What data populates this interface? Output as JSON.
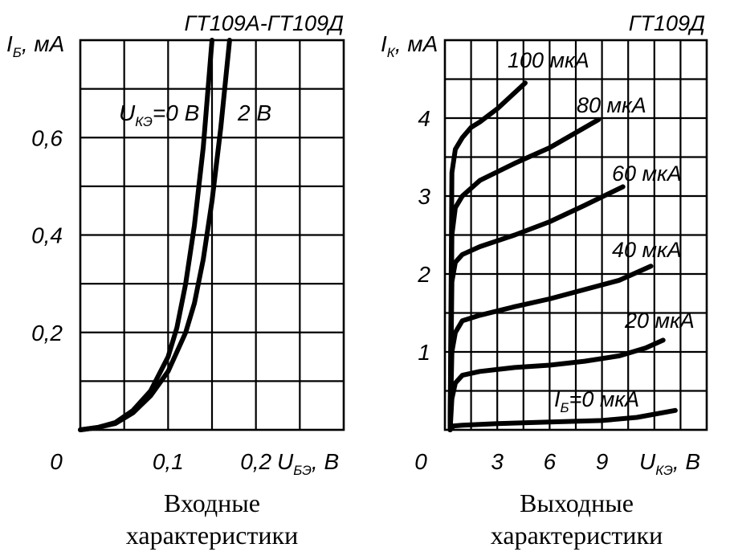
{
  "chart_data": [
    {
      "type": "line",
      "title": "ГТ109А-ГТ109Д",
      "caption": [
        "Входные",
        "характеристики"
      ],
      "ylabel_main": "I",
      "ylabel_sub": "Б",
      "ylabel_unit": ", мА",
      "xlabel_main": "U",
      "xlabel_sub": "БЭ",
      "xlabel_unit": ", В",
      "xlim": [
        0,
        0.3
      ],
      "ylim": [
        0,
        0.8
      ],
      "xticks": [
        {
          "v": 0,
          "t": "0"
        },
        {
          "v": 0.1,
          "t": "0,1"
        },
        {
          "v": 0.2,
          "t": "0,2"
        }
      ],
      "yticks": [
        {
          "v": 0.2,
          "t": "0,2"
        },
        {
          "v": 0.4,
          "t": "0,4"
        },
        {
          "v": 0.6,
          "t": "0,6"
        }
      ],
      "grid_x": [
        0.05,
        0.1,
        0.15,
        0.2,
        0.25
      ],
      "grid_y": [
        0.1,
        0.2,
        0.3,
        0.4,
        0.5,
        0.6,
        0.7
      ],
      "grid": true,
      "series": [
        {
          "label": "U",
          "label_sub": "КЭ",
          "label_rest": "=0 В",
          "x": [
            0,
            0.02,
            0.04,
            0.06,
            0.08,
            0.1,
            0.11,
            0.12,
            0.13,
            0.14,
            0.15
          ],
          "y": [
            0,
            0.005,
            0.015,
            0.04,
            0.08,
            0.15,
            0.21,
            0.3,
            0.42,
            0.58,
            0.8
          ]
        },
        {
          "label": "2 В",
          "x": [
            0,
            0.02,
            0.04,
            0.06,
            0.08,
            0.1,
            0.12,
            0.13,
            0.14,
            0.15,
            0.16,
            0.17
          ],
          "y": [
            0,
            0.005,
            0.013,
            0.035,
            0.07,
            0.12,
            0.2,
            0.26,
            0.35,
            0.47,
            0.62,
            0.8
          ]
        }
      ]
    },
    {
      "type": "line",
      "title": "ГТ109Д",
      "caption": [
        "Выходные",
        "характеристики"
      ],
      "ylabel_main": "I",
      "ylabel_sub": "К",
      "ylabel_unit": ", мА",
      "xlabel_main": "U",
      "xlabel_sub": "КЭ",
      "xlabel_unit": ", В",
      "xlim": [
        0,
        15
      ],
      "ylim": [
        0,
        5
      ],
      "xticks": [
        {
          "v": 0,
          "t": "0"
        },
        {
          "v": 3,
          "t": "3"
        },
        {
          "v": 6,
          "t": "6"
        },
        {
          "v": 9,
          "t": "9"
        }
      ],
      "yticks": [
        {
          "v": 1,
          "t": "1"
        },
        {
          "v": 2,
          "t": "2"
        },
        {
          "v": 3,
          "t": "3"
        },
        {
          "v": 4,
          "t": "4"
        }
      ],
      "grid_x": [
        1.5,
        3,
        4.5,
        6,
        7.5,
        9,
        10.5,
        12,
        13.5
      ],
      "grid_y": [
        0.5,
        1,
        1.5,
        2,
        2.5,
        3,
        3.5,
        4,
        4.5
      ],
      "grid": true,
      "series": [
        {
          "label": "I",
          "label_sub": "Б",
          "label_rest": "=0 мкА",
          "x": [
            0.3,
            0.5,
            1,
            3,
            6,
            9,
            11,
            13.2
          ],
          "y": [
            0,
            0.05,
            0.06,
            0.08,
            0.1,
            0.12,
            0.16,
            0.25
          ]
        },
        {
          "label": "20 мкА",
          "x": [
            0.3,
            0.4,
            0.6,
            1,
            2,
            4,
            6,
            8,
            10,
            11.5,
            12.5
          ],
          "y": [
            0,
            0.4,
            0.6,
            0.7,
            0.75,
            0.8,
            0.83,
            0.88,
            0.95,
            1.05,
            1.15
          ]
        },
        {
          "label": "40 мкА",
          "x": [
            0.3,
            0.4,
            0.6,
            1,
            2,
            4,
            6,
            8,
            10,
            11.8
          ],
          "y": [
            0,
            1,
            1.25,
            1.4,
            1.47,
            1.58,
            1.68,
            1.8,
            1.92,
            2.1
          ]
        },
        {
          "label": "60 мкА",
          "x": [
            0.3,
            0.4,
            0.6,
            1,
            2,
            4,
            6,
            8,
            10.2
          ],
          "y": [
            0,
            1.9,
            2.15,
            2.25,
            2.35,
            2.5,
            2.67,
            2.88,
            3.12
          ]
        },
        {
          "label": "80 мкА",
          "x": [
            0.3,
            0.4,
            0.6,
            1,
            2,
            4,
            6,
            8.8
          ],
          "y": [
            0,
            2.5,
            2.85,
            3,
            3.2,
            3.42,
            3.62,
            3.98
          ]
        },
        {
          "label": "100 мкА",
          "x": [
            0.3,
            0.4,
            0.6,
            1,
            1.5,
            2,
            3,
            4.6
          ],
          "y": [
            0,
            3.3,
            3.6,
            3.75,
            3.88,
            3.95,
            4.12,
            4.45
          ]
        }
      ]
    }
  ]
}
